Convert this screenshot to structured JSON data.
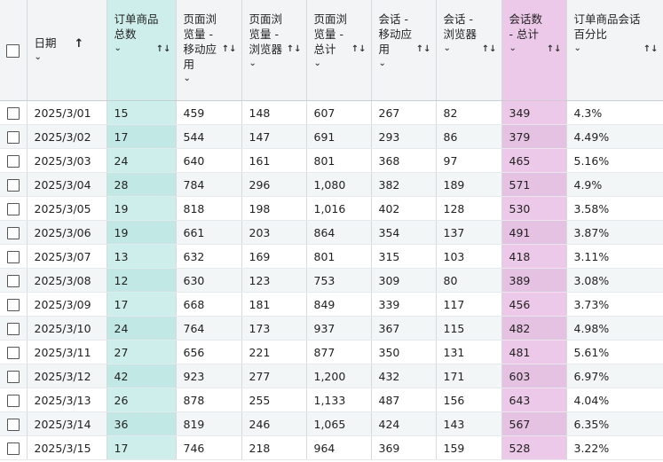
{
  "table": {
    "columns": [
      {
        "label": "日期",
        "sort": "↑"
      },
      {
        "label": "订单商品\n总数",
        "sort": "↑↓"
      },
      {
        "label": "页面浏\n览量 -\n移动应\n用",
        "sort": "↑↓"
      },
      {
        "label": "页面浏\n览量 -\n浏览器",
        "sort": "↑↓"
      },
      {
        "label": "页面浏\n览量 -\n总计",
        "sort": "↑↓"
      },
      {
        "label": "会话 -\n移动应\n用",
        "sort": "↑↓"
      },
      {
        "label": "会话 -\n浏览器",
        "sort": "↑↓"
      },
      {
        "label": "会话数\n- 总计",
        "sort": "↑↓"
      },
      {
        "label": "订单商品会话\n百分比",
        "sort": "↑↓"
      }
    ],
    "rows": [
      [
        "2025/3/01",
        "15",
        "459",
        "148",
        "607",
        "267",
        "82",
        "349",
        "4.3%"
      ],
      [
        "2025/3/02",
        "17",
        "544",
        "147",
        "691",
        "293",
        "86",
        "379",
        "4.49%"
      ],
      [
        "2025/3/03",
        "24",
        "640",
        "161",
        "801",
        "368",
        "97",
        "465",
        "5.16%"
      ],
      [
        "2025/3/04",
        "28",
        "784",
        "296",
        "1,080",
        "382",
        "189",
        "571",
        "4.9%"
      ],
      [
        "2025/3/05",
        "19",
        "818",
        "198",
        "1,016",
        "402",
        "128",
        "530",
        "3.58%"
      ],
      [
        "2025/3/06",
        "19",
        "661",
        "203",
        "864",
        "354",
        "137",
        "491",
        "3.87%"
      ],
      [
        "2025/3/07",
        "13",
        "632",
        "169",
        "801",
        "315",
        "103",
        "418",
        "3.11%"
      ],
      [
        "2025/3/08",
        "12",
        "630",
        "123",
        "753",
        "309",
        "80",
        "389",
        "3.08%"
      ],
      [
        "2025/3/09",
        "17",
        "668",
        "181",
        "849",
        "339",
        "117",
        "456",
        "3.73%"
      ],
      [
        "2025/3/10",
        "24",
        "764",
        "173",
        "937",
        "367",
        "115",
        "482",
        "4.98%"
      ],
      [
        "2025/3/11",
        "27",
        "656",
        "221",
        "877",
        "350",
        "131",
        "481",
        "5.61%"
      ],
      [
        "2025/3/12",
        "42",
        "923",
        "277",
        "1,200",
        "432",
        "171",
        "603",
        "6.97%"
      ],
      [
        "2025/3/13",
        "26",
        "878",
        "255",
        "1,133",
        "487",
        "156",
        "643",
        "4.04%"
      ],
      [
        "2025/3/14",
        "36",
        "819",
        "246",
        "1,065",
        "424",
        "143",
        "567",
        "6.35%"
      ],
      [
        "2025/3/15",
        "17",
        "746",
        "218",
        "964",
        "369",
        "159",
        "528",
        "3.22%"
      ]
    ]
  },
  "colors": {
    "highlight_teal": "#cdeeeb",
    "highlight_pink": "#ecc9e8",
    "header_bg": "#f2f4f5"
  }
}
